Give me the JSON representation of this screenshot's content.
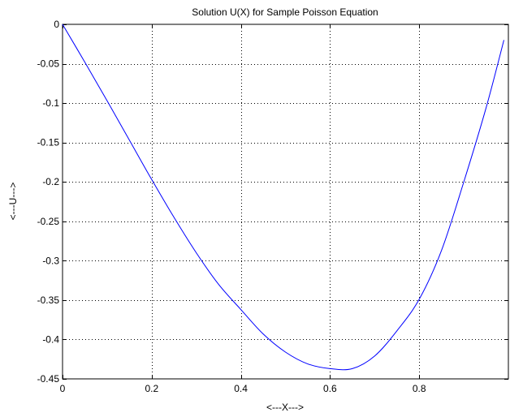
{
  "chart_data": {
    "type": "line",
    "title": "Solution U(X) for Sample Poisson Equation",
    "xlabel": "<---X--->",
    "ylabel": "<---U--->",
    "xlim": [
      0,
      1
    ],
    "ylim": [
      -0.45,
      0
    ],
    "grid": true,
    "grid_style": "dotted",
    "x_ticks": [
      0,
      0.2,
      0.4,
      0.6,
      0.8
    ],
    "x_tick_labels": [
      "0",
      "0.2",
      "0.4",
      "0.6",
      "0.8"
    ],
    "y_ticks": [
      0,
      -0.05,
      -0.1,
      -0.15,
      -0.2,
      -0.25,
      -0.3,
      -0.35,
      -0.4,
      -0.45
    ],
    "y_tick_labels": [
      "0",
      "-0.05",
      "-0.1",
      "-0.15",
      "-0.2",
      "-0.25",
      "-0.3",
      "-0.35",
      "-0.4",
      "-0.45"
    ],
    "series": [
      {
        "color": "#0000ff",
        "x": [
          0,
          0.05,
          0.1,
          0.15,
          0.2,
          0.25,
          0.3,
          0.35,
          0.4,
          0.45,
          0.5,
          0.55,
          0.6,
          0.65,
          0.7,
          0.75,
          0.8,
          0.85,
          0.9,
          0.95,
          0.99
        ],
        "y": [
          0,
          -0.048,
          -0.097,
          -0.147,
          -0.197,
          -0.245,
          -0.29,
          -0.33,
          -0.362,
          -0.393,
          -0.416,
          -0.431,
          -0.437,
          -0.437,
          -0.421,
          -0.389,
          -0.349,
          -0.287,
          -0.2,
          -0.106,
          -0.02
        ]
      }
    ]
  }
}
